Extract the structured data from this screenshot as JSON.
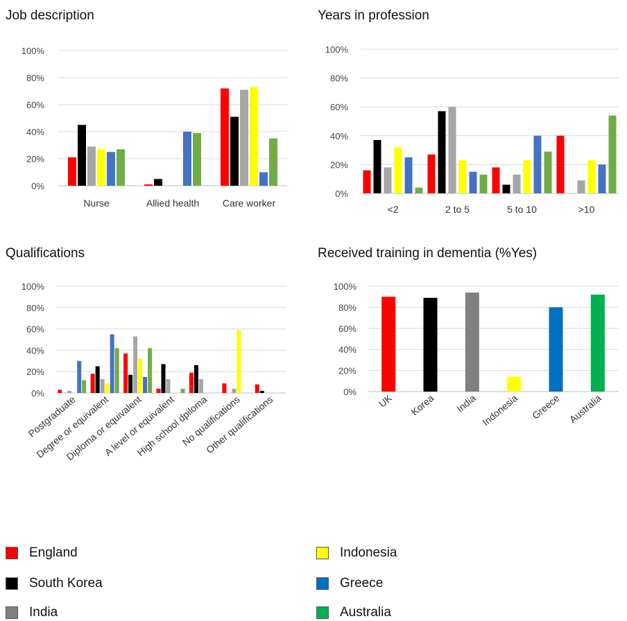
{
  "colors": {
    "England": "#ff0000",
    "South Korea": "#000000",
    "India": "#a6a6a6",
    "India_bar": "#808080",
    "Indonesia": "#ffff00",
    "Greece": "#4472c4",
    "Greece_bar": "#0070c0",
    "Australia": "#70ad47",
    "Australia_bar": "#00b050",
    "grid": "#d9d9d9"
  },
  "legend": [
    {
      "label": "England",
      "color": "#ff0000"
    },
    {
      "label": "South Korea",
      "color": "#000000"
    },
    {
      "label": "India",
      "color": "#808080"
    },
    {
      "label": "Indonesia",
      "color": "#ffff00"
    },
    {
      "label": "Greece",
      "color": "#0070c0"
    },
    {
      "label": "Australia",
      "color": "#00b050"
    }
  ],
  "chart_data": [
    {
      "type": "bar",
      "title": "Job description",
      "categories": [
        "Nurse",
        "Allied health",
        "Care worker"
      ],
      "ylim": [
        0,
        100
      ],
      "yticks": [
        "0%",
        "20%",
        "40%",
        "60%",
        "80%",
        "100%"
      ],
      "grid": true,
      "series": [
        {
          "name": "England",
          "values": [
            21,
            1,
            72
          ]
        },
        {
          "name": "South Korea",
          "values": [
            45,
            5,
            51
          ]
        },
        {
          "name": "India",
          "values": [
            29,
            0,
            71
          ]
        },
        {
          "name": "Indonesia",
          "values": [
            27,
            0,
            73
          ]
        },
        {
          "name": "Greece",
          "values": [
            25,
            40,
            10
          ]
        },
        {
          "name": "Australia",
          "values": [
            27,
            39,
            35
          ]
        }
      ]
    },
    {
      "type": "bar",
      "title": "Years in profession",
      "categories": [
        "<2",
        "2 to 5",
        "5 to 10",
        ">10"
      ],
      "ylim": [
        0,
        100
      ],
      "yticks": [
        "0%",
        "20%",
        "40%",
        "60%",
        "80%",
        "100%"
      ],
      "grid": true,
      "series": [
        {
          "name": "England",
          "values": [
            16,
            27,
            18,
            40
          ]
        },
        {
          "name": "South Korea",
          "values": [
            37,
            57,
            6,
            0
          ]
        },
        {
          "name": "India",
          "values": [
            18,
            60,
            13,
            9
          ]
        },
        {
          "name": "Indonesia",
          "values": [
            32,
            23,
            23,
            23
          ]
        },
        {
          "name": "Greece",
          "values": [
            25,
            15,
            40,
            20
          ]
        },
        {
          "name": "Australia",
          "values": [
            4,
            13,
            29,
            54
          ]
        }
      ]
    },
    {
      "type": "bar",
      "title": "Qualifications",
      "categories": [
        "Postgraduate",
        "Degree or equivalent",
        "Diploma or equivalent",
        "A level or equivalent",
        "High school dpiloma",
        "No qualifications",
        "Other qualifications"
      ],
      "ylim": [
        0,
        100
      ],
      "yticks": [
        "0%",
        "20%",
        "40%",
        "60%",
        "80%",
        "100%"
      ],
      "grid": true,
      "series": [
        {
          "name": "England",
          "values": [
            3,
            18,
            37,
            4,
            19,
            9,
            8
          ]
        },
        {
          "name": "South Korea",
          "values": [
            0,
            25,
            17,
            27,
            26,
            0,
            2
          ]
        },
        {
          "name": "India",
          "values": [
            2,
            13,
            53,
            13,
            13,
            4,
            0
          ]
        },
        {
          "name": "Indonesia",
          "values": [
            0,
            9,
            32,
            0,
            0,
            59,
            0
          ]
        },
        {
          "name": "Greece",
          "values": [
            30,
            55,
            15,
            0,
            0,
            0,
            0
          ]
        },
        {
          "name": "Australia",
          "values": [
            12,
            42,
            42,
            4,
            0,
            0,
            0
          ]
        }
      ]
    },
    {
      "type": "bar",
      "title": "Received training in dementia (%Yes)",
      "categories": [
        "UK",
        "Korea",
        "India",
        "Indonesia",
        "Greece",
        "Australia"
      ],
      "ylim": [
        0,
        100
      ],
      "yticks": [
        "0%",
        "20%",
        "40%",
        "60%",
        "80%",
        "100%"
      ],
      "grid": true,
      "values": [
        90,
        89,
        94,
        14,
        80,
        92
      ],
      "bar_colors": [
        "#ff0000",
        "#000000",
        "#808080",
        "#ffff00",
        "#0070c0",
        "#00b050"
      ]
    }
  ]
}
